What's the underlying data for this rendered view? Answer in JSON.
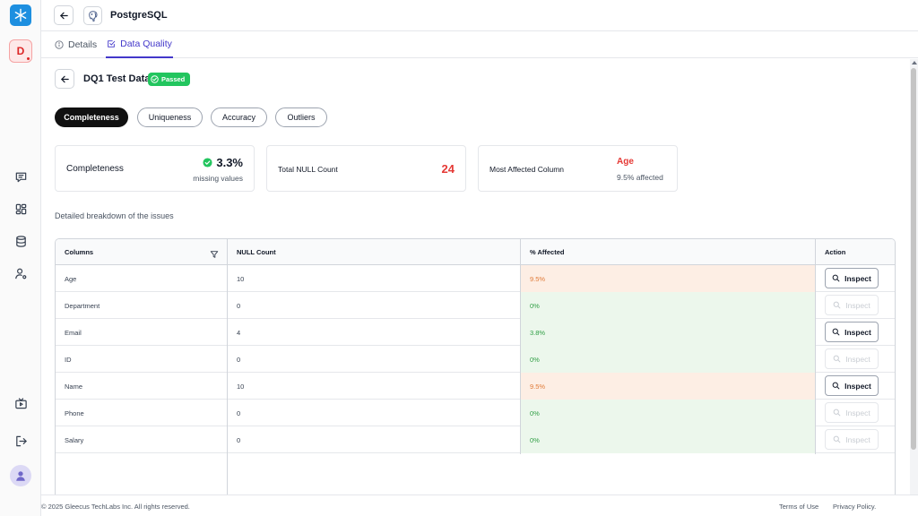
{
  "header": {
    "title": "PostgreSQL"
  },
  "sidebar": {
    "workspace_initial": "D"
  },
  "tabs": [
    {
      "label": "Details",
      "active": false
    },
    {
      "label": "Data Quality",
      "active": true
    }
  ],
  "dq": {
    "title": "DQ1 Test Data",
    "status": "Passed"
  },
  "pills": [
    "Completeness",
    "Uniqueness",
    "Accuracy",
    "Outliers"
  ],
  "cards": {
    "completeness": {
      "label": "Completeness",
      "value": "3.3%",
      "sub": "missing values"
    },
    "null_count": {
      "label": "Total NULL Count",
      "value": "24"
    },
    "most_affected": {
      "label": "Most Affected Column",
      "value": "Age",
      "sub": "9.5% affected"
    }
  },
  "breakdown_label": "Detailed breakdown of the issues",
  "table": {
    "headers": [
      "Columns",
      "NULL Count",
      "% Affected",
      "Action"
    ],
    "rows": [
      {
        "column": "Age",
        "null_count": "10",
        "affected": "9.5%",
        "status": "warn"
      },
      {
        "column": "Department",
        "null_count": "0",
        "affected": "0%",
        "status": "ok"
      },
      {
        "column": "Email",
        "null_count": "4",
        "affected": "3.8%",
        "status": "ok"
      },
      {
        "column": "ID",
        "null_count": "0",
        "affected": "0%",
        "status": "ok"
      },
      {
        "column": "Name",
        "null_count": "10",
        "affected": "9.5%",
        "status": "warn"
      },
      {
        "column": "Phone",
        "null_count": "0",
        "affected": "0%",
        "status": "ok"
      },
      {
        "column": "Salary",
        "null_count": "0",
        "affected": "0%",
        "status": "ok"
      }
    ],
    "action_label": "Inspect"
  },
  "footer": {
    "copyright": "© 2025 Gleecus TechLabs Inc. All rights reserved.",
    "terms": "Terms of Use",
    "privacy": "Privacy Policy."
  },
  "colors": {
    "accent": "#4338ca",
    "passed": "#22c55e",
    "danger": "#e53935",
    "warn_bg": "#fdeee4",
    "warn_text": "#e07b39",
    "ok_bg": "#ecf7ec",
    "ok_text": "#2f9e44"
  },
  "icons": {
    "sidebar": [
      "chat-icon",
      "dashboard-icon",
      "database-icon",
      "user-settings-icon",
      "tv-icon",
      "logout-icon"
    ]
  }
}
